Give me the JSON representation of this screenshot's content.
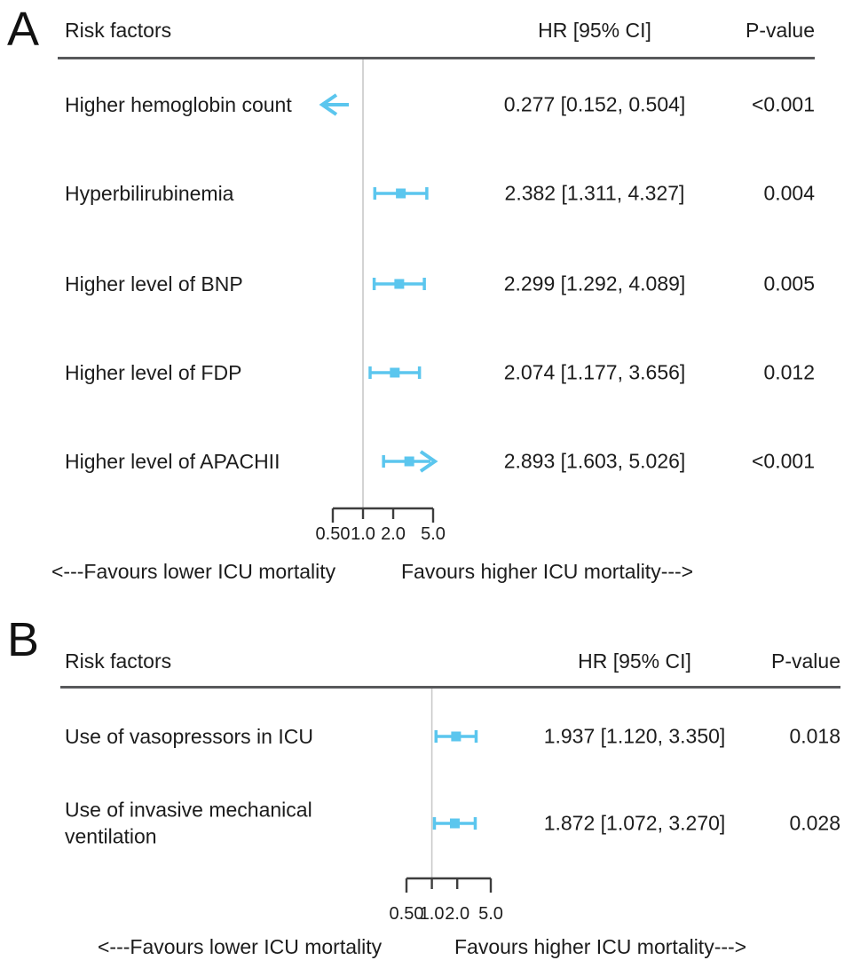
{
  "figure": {
    "background": "#ffffff",
    "description_left_arrow": "off-scale toward lower hazard",
    "description_right_arrow": "off-scale toward higher hazard"
  },
  "colors": {
    "marker": "#5bc6ee",
    "refline": "#c9c9c9",
    "rule": "#58595b",
    "axis": "#3d3d3d",
    "text": "#1c1c1c"
  },
  "chart_data": [
    {
      "type": "forest",
      "panel_label": "A",
      "columns": [
        "Risk factors",
        "HR [95% CI]",
        "P-value"
      ],
      "scale": "log",
      "axis_range": [
        0.5,
        5.0
      ],
      "axis_tick_values": [
        0.5,
        1.0,
        2.0,
        5.0
      ],
      "axis_ticks": [
        "0.50",
        "1.0",
        "2.0",
        "5.0"
      ],
      "refline_value": 1.0,
      "rows": [
        {
          "label": "Higher hemoglobin count",
          "hr": 0.277,
          "ci_low": 0.152,
          "ci_high": 0.504,
          "hr_text": "0.277 [0.152, 0.504]",
          "p_text": "<0.001",
          "offscale": "left"
        },
        {
          "label": "Hyperbilirubinemia",
          "hr": 2.382,
          "ci_low": 1.311,
          "ci_high": 4.327,
          "hr_text": "2.382 [1.311, 4.327]",
          "p_text": "0.004",
          "offscale": null
        },
        {
          "label": "Higher level of BNP",
          "hr": 2.299,
          "ci_low": 1.292,
          "ci_high": 4.089,
          "hr_text": "2.299 [1.292, 4.089]",
          "p_text": "0.005",
          "offscale": null
        },
        {
          "label": "Higher level of FDP",
          "hr": 2.074,
          "ci_low": 1.177,
          "ci_high": 3.656,
          "hr_text": "2.074 [1.177, 3.656]",
          "p_text": "0.012",
          "offscale": null
        },
        {
          "label": "Higher level of APACHII",
          "hr": 2.893,
          "ci_low": 1.603,
          "ci_high": 5.026,
          "hr_text": "2.893 [1.603, 5.026]",
          "p_text": "<0.001",
          "offscale": "right"
        }
      ],
      "favours_left": "<---Favours lower ICU mortality",
      "favours_right": "Favours higher ICU mortality--->"
    },
    {
      "type": "forest",
      "panel_label": "B",
      "columns": [
        "Risk factors",
        "HR [95% CI]",
        "P-value"
      ],
      "scale": "log",
      "axis_range": [
        0.5,
        5.0
      ],
      "axis_tick_values": [
        0.5,
        1.0,
        2.0,
        5.0
      ],
      "axis_ticks": [
        "0.50",
        "1.0",
        "2.0",
        "5.0"
      ],
      "refline_value": 1.0,
      "rows": [
        {
          "label": "Use of vasopressors in ICU",
          "hr": 1.937,
          "ci_low": 1.12,
          "ci_high": 3.35,
          "hr_text": "1.937 [1.120, 3.350]",
          "p_text": "0.018",
          "offscale": null
        },
        {
          "label": "Use of invasive mechanical ventilation",
          "hr": 1.872,
          "ci_low": 1.072,
          "ci_high": 3.27,
          "hr_text": "1.872 [1.072, 3.270]",
          "p_text": "0.028",
          "offscale": null
        }
      ],
      "favours_left": "<---Favours lower ICU mortality",
      "favours_right": "Favours higher ICU mortality--->"
    }
  ]
}
